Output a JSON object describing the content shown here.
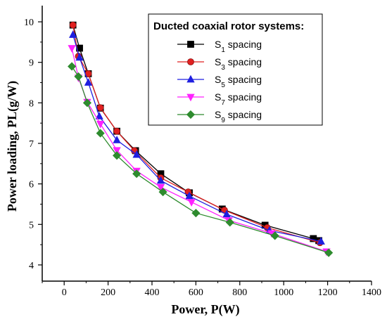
{
  "chart_data": {
    "type": "line",
    "xlabel": "Power, P(W)",
    "ylabel": "Power loading, PL(g/W)",
    "xlim": [
      -100,
      1400
    ],
    "ylim": [
      3.6,
      10.4
    ],
    "xticks": [
      "0",
      "200",
      "400",
      "600",
      "800",
      "1000",
      "1200",
      "1400"
    ],
    "yticks": [
      "4",
      "5",
      "6",
      "7",
      "8",
      "9",
      "10"
    ],
    "grid": false,
    "legend_position": "top-right",
    "legend_title": "Ducted coaxial rotor systems:",
    "series": [
      {
        "name": "S1 spacing",
        "name_main": "S",
        "name_sub": "1",
        "name_rest": " spacing",
        "color": "#000000",
        "marker": "square",
        "x": [
          40,
          70,
          110,
          165,
          240,
          325,
          440,
          570,
          720,
          915,
          1135,
          1160
        ],
        "y": [
          9.92,
          9.35,
          8.72,
          7.87,
          7.3,
          6.82,
          6.25,
          5.78,
          5.38,
          4.98,
          4.65,
          4.6
        ]
      },
      {
        "name": "S3 spacing",
        "name_main": "S",
        "name_sub": "3",
        "name_rest": " spacing",
        "color": "#e02020",
        "marker": "circle",
        "x": [
          40,
          65,
          110,
          165,
          240,
          320,
          440,
          565,
          730,
          925,
          1165
        ],
        "y": [
          9.92,
          9.15,
          8.72,
          7.88,
          7.3,
          6.82,
          6.15,
          5.8,
          5.35,
          4.92,
          4.55
        ]
      },
      {
        "name": "S5 spacing",
        "name_main": "S",
        "name_sub": "5",
        "name_rest": " spacing",
        "color": "#1f1fe0",
        "marker": "triangle-up",
        "x": [
          40,
          70,
          110,
          160,
          240,
          330,
          440,
          570,
          740,
          935,
          1170
        ],
        "y": [
          9.68,
          9.12,
          8.5,
          7.67,
          7.08,
          6.72,
          6.08,
          5.7,
          5.25,
          4.85,
          4.58
        ]
      },
      {
        "name": "S7 spacing",
        "name_main": "S",
        "name_sub": "7",
        "name_rest": " spacing",
        "color": "#ff22ff",
        "marker": "triangle-down",
        "x": [
          35,
          65,
          105,
          165,
          240,
          330,
          440,
          580,
          750,
          945,
          1195
        ],
        "y": [
          9.35,
          8.62,
          8.02,
          7.48,
          6.83,
          6.32,
          5.92,
          5.55,
          5.1,
          4.78,
          4.33
        ]
      },
      {
        "name": "S9 spacing",
        "name_main": "S",
        "name_sub": "9",
        "name_rest": " spacing",
        "color": "#2e8b2e",
        "marker": "diamond",
        "x": [
          35,
          65,
          105,
          165,
          240,
          330,
          450,
          600,
          755,
          960,
          1205
        ],
        "y": [
          8.9,
          8.65,
          8.0,
          7.25,
          6.7,
          6.25,
          5.8,
          5.28,
          5.05,
          4.72,
          4.3
        ]
      }
    ]
  }
}
